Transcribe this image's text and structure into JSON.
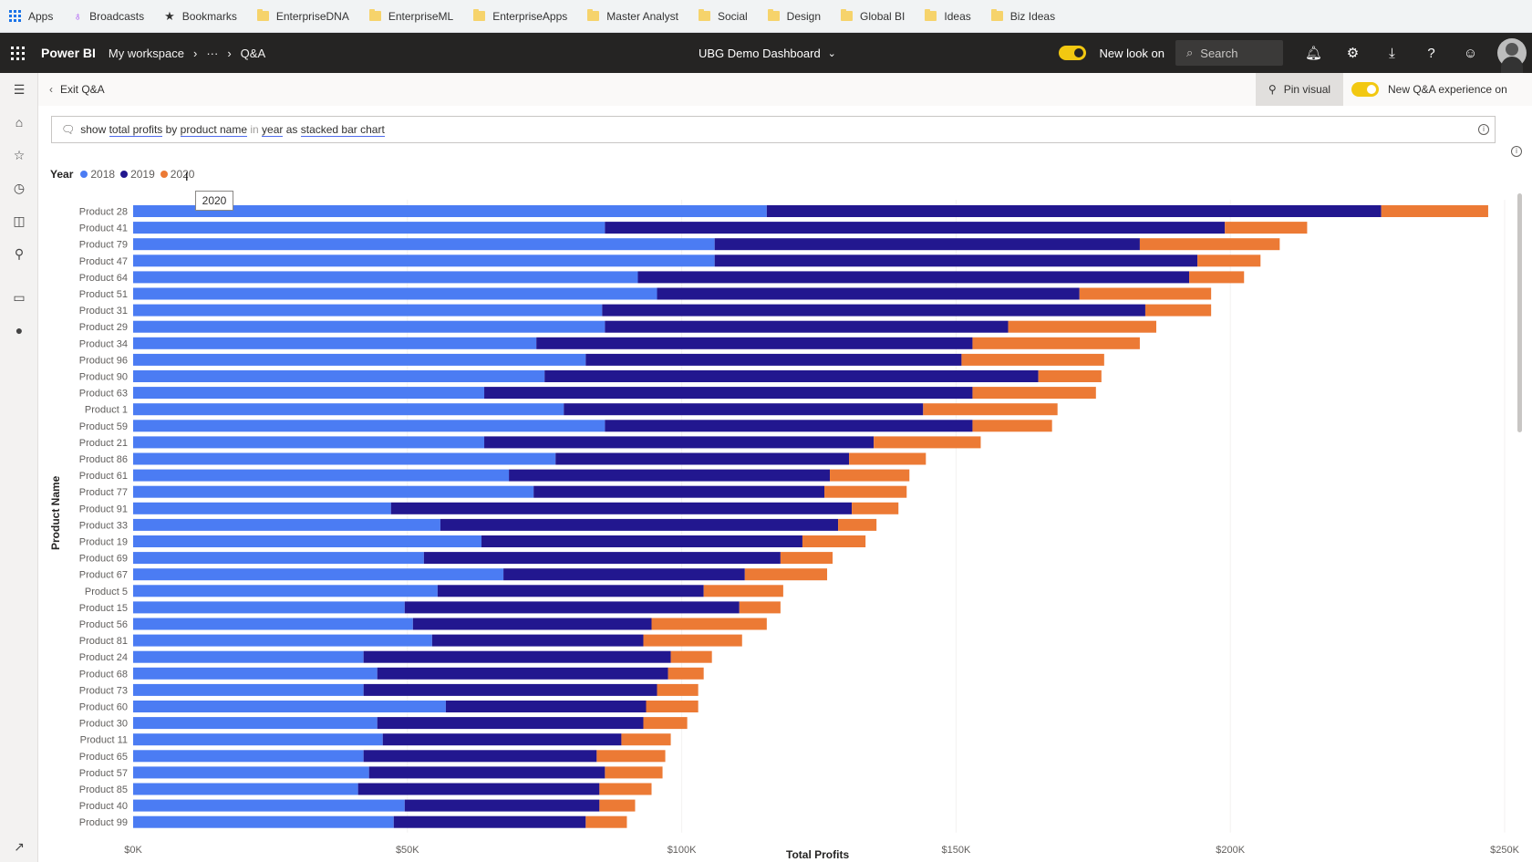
{
  "bookmarks": [
    {
      "label": "Apps",
      "icon": "apps-grid-icon"
    },
    {
      "label": "Broadcasts",
      "icon": "broadcast-icon"
    },
    {
      "label": "Bookmarks",
      "icon": "star-icon"
    },
    {
      "label": "EnterpriseDNA",
      "icon": "folder-icon"
    },
    {
      "label": "EnterpriseML",
      "icon": "folder-icon"
    },
    {
      "label": "EnterpriseApps",
      "icon": "folder-icon"
    },
    {
      "label": "Master Analyst",
      "icon": "folder-icon"
    },
    {
      "label": "Social",
      "icon": "folder-icon"
    },
    {
      "label": "Design",
      "icon": "folder-icon"
    },
    {
      "label": "Global BI",
      "icon": "folder-icon"
    },
    {
      "label": "Ideas",
      "icon": "folder-icon"
    },
    {
      "label": "Biz Ideas",
      "icon": "folder-icon"
    }
  ],
  "header": {
    "brand": "Power BI",
    "breadcrumb": [
      "My workspace",
      "···",
      "Q&A"
    ],
    "dashboard_title": "UBG Demo Dashboard",
    "new_look_label": "New look on",
    "search_placeholder": "Search"
  },
  "action_bar": {
    "exit_label": "Exit Q&A",
    "pin_label": "Pin visual",
    "new_qa_label": "New Q&A experience on"
  },
  "query": {
    "parts": [
      {
        "text": "show ",
        "style": "plain"
      },
      {
        "text": "total profits",
        "style": "term"
      },
      {
        "text": " by ",
        "style": "plain"
      },
      {
        "text": "product name",
        "style": "term"
      },
      {
        "text": " in ",
        "style": "muted"
      },
      {
        "text": "year",
        "style": "term"
      },
      {
        "text": " as ",
        "style": "plain"
      },
      {
        "text": "stacked bar chart",
        "style": "term"
      }
    ]
  },
  "tooltip": "2020",
  "colors": {
    "2018": "#4b7cf3",
    "2019": "#22178f",
    "2020": "#ec7a35"
  },
  "chart_data": {
    "type": "bar",
    "orientation": "horizontal",
    "stacked": true,
    "title": "",
    "xlabel": "Total Profits",
    "ylabel": "Product Name",
    "legend_title": "Year",
    "legend_position": "top-left",
    "xlim": [
      0,
      250000
    ],
    "x_ticks": [
      "$0K",
      "$50K",
      "$100K",
      "$150K",
      "$200K",
      "$250K"
    ],
    "x_tick_values": [
      0,
      50000,
      100000,
      150000,
      200000,
      250000
    ],
    "categories": [
      "Product 28",
      "Product 41",
      "Product 79",
      "Product 47",
      "Product 64",
      "Product 51",
      "Product 31",
      "Product 29",
      "Product 34",
      "Product 96",
      "Product 90",
      "Product 63",
      "Product 1",
      "Product 59",
      "Product 21",
      "Product 86",
      "Product 61",
      "Product 77",
      "Product 91",
      "Product 33",
      "Product 19",
      "Product 69",
      "Product 67",
      "Product 5",
      "Product 15",
      "Product 56",
      "Product 81",
      "Product 24",
      "Product 68",
      "Product 73",
      "Product 60",
      "Product 30",
      "Product 11",
      "Product 65",
      "Product 57",
      "Product 85",
      "Product 40",
      "Product 99"
    ],
    "series": [
      {
        "name": "2018",
        "values": [
          115500,
          86000,
          106000,
          106000,
          92000,
          95500,
          85500,
          86000,
          73500,
          82500,
          75000,
          64000,
          78500,
          86000,
          64000,
          77000,
          68500,
          73000,
          47000,
          56000,
          63500,
          53000,
          67500,
          55500,
          49500,
          51000,
          54500,
          42000,
          44500,
          42000,
          57000,
          44500,
          45500,
          42000,
          43000,
          41000,
          49500,
          47500
        ]
      },
      {
        "name": "2019",
        "values": [
          112000,
          113000,
          77500,
          88000,
          100500,
          77000,
          99000,
          73500,
          79500,
          68500,
          90000,
          89000,
          65500,
          67000,
          71000,
          53500,
          58500,
          53000,
          84000,
          72500,
          58500,
          65000,
          44000,
          48500,
          61000,
          43500,
          38500,
          56000,
          53000,
          53500,
          36500,
          48500,
          43500,
          42500,
          43000,
          44000,
          35500,
          35000
        ]
      },
      {
        "name": "2020",
        "values": [
          19500,
          15000,
          25500,
          11500,
          10000,
          24000,
          12000,
          27000,
          30500,
          26000,
          11500,
          22500,
          24500,
          14500,
          19500,
          14000,
          14500,
          15000,
          8500,
          7000,
          11500,
          9500,
          15000,
          14500,
          7500,
          21000,
          18000,
          7500,
          6500,
          7500,
          9500,
          8000,
          9000,
          12500,
          10500,
          9500,
          6500,
          7500
        ]
      }
    ]
  }
}
